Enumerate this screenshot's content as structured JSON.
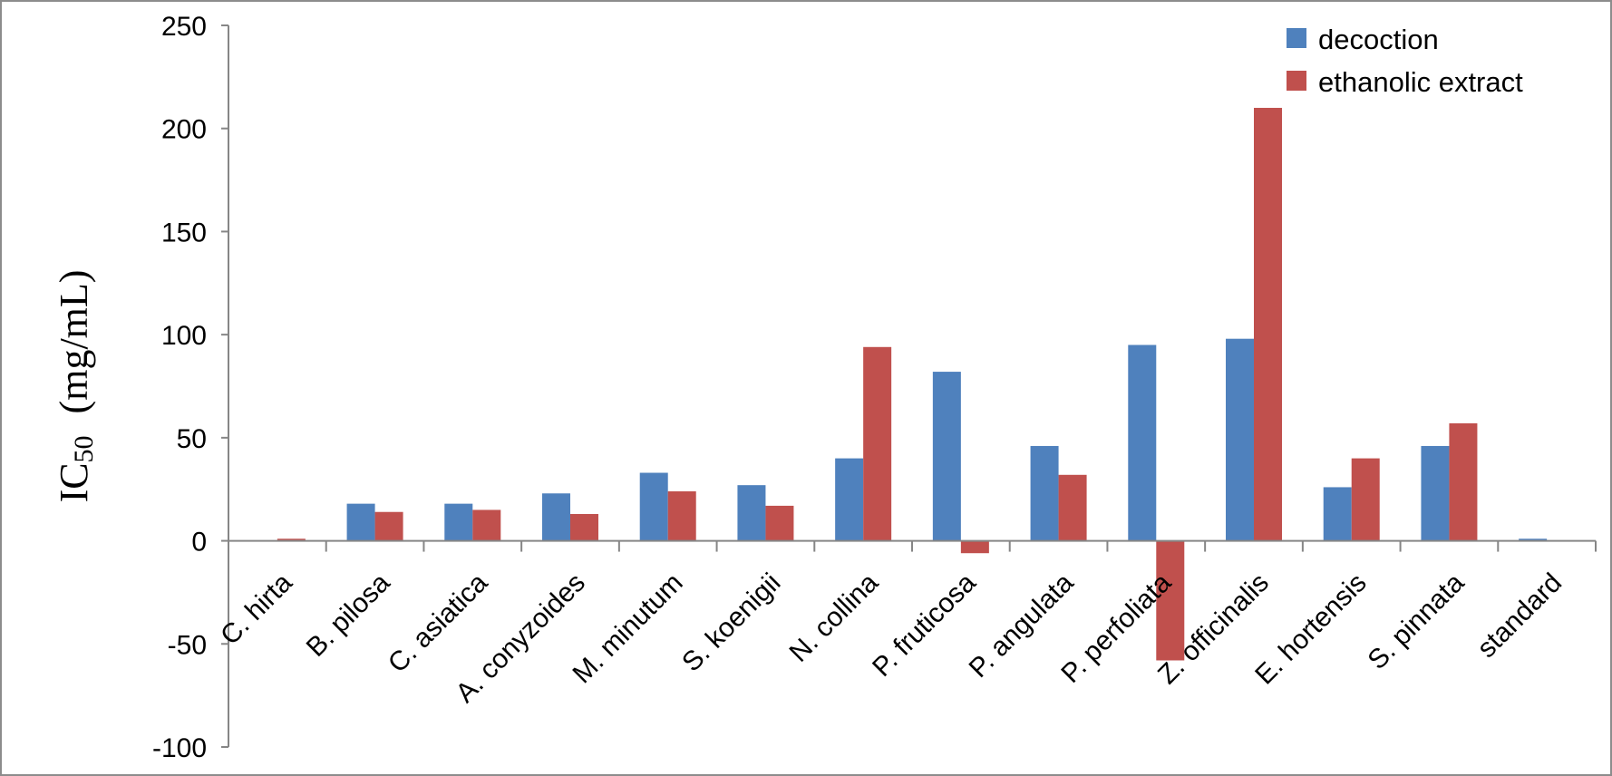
{
  "chart_data": {
    "type": "bar",
    "title": "",
    "xlabel": "",
    "ylabel": {
      "main": "IC",
      "sub": "50",
      "unit": "(mg/mL)"
    },
    "ylim": [
      -100,
      250
    ],
    "yticks": [
      250,
      200,
      150,
      100,
      50,
      0,
      -50,
      -100
    ],
    "grid": false,
    "legend_position": "top-right",
    "categories": [
      "C. hirta",
      "B. pilosa",
      "C. asiatica",
      "A. conyzoides",
      "M. minutum",
      "S. koenigii",
      "N. collina",
      "P. fruticosa",
      "P. angulata",
      "P. perfoliata",
      "Z. officinalis",
      "E. hortensis",
      "S. pinnata",
      "standard"
    ],
    "series": [
      {
        "name": "decoction",
        "color": "#4F81BD",
        "values": [
          0,
          18,
          18,
          23,
          33,
          27,
          40,
          82,
          46,
          95,
          98,
          26,
          46,
          1
        ]
      },
      {
        "name": "ethanolic extract",
        "color": "#C0504D",
        "values": [
          1,
          14,
          15,
          13,
          24,
          17,
          94,
          -6,
          32,
          -58,
          210,
          40,
          57,
          0
        ]
      }
    ]
  }
}
